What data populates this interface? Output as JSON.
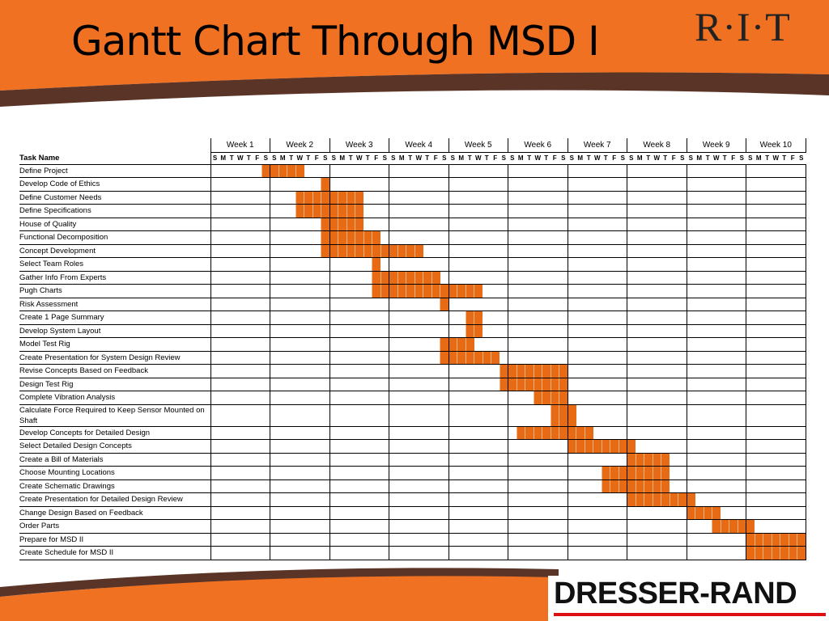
{
  "slide": {
    "title": "Gantt Chart Through MSD I",
    "logo_top": "R·I·T",
    "logo_bottom": "DRESSER-RAND"
  },
  "colors": {
    "accent": "#F07122",
    "bar": "#E76B14",
    "dark_band": "#5A3426"
  },
  "chart_data": {
    "type": "table",
    "title": "Gantt Chart Through MSD I",
    "row_header": "Task Name",
    "weeks": [
      "Week 1",
      "Week 2",
      "Week 3",
      "Week 4",
      "Week 5",
      "Week 6",
      "Week 7",
      "Week 8",
      "Week 9",
      "Week 10"
    ],
    "day_letters": [
      "S",
      "M",
      "T",
      "W",
      "T",
      "F",
      "S"
    ],
    "tasks": [
      {
        "name": "Define Project",
        "start_day": 6,
        "end_day": 10
      },
      {
        "name": "Develop Code of Ethics",
        "start_day": 13,
        "end_day": 13
      },
      {
        "name": "Define Customer Needs",
        "start_day": 10,
        "end_day": 17
      },
      {
        "name": "Define Specifications",
        "start_day": 10,
        "end_day": 17
      },
      {
        "name": "House of Quality",
        "start_day": 13,
        "end_day": 17
      },
      {
        "name": "Functional Decomposition",
        "start_day": 13,
        "end_day": 19
      },
      {
        "name": "Concept Development",
        "start_day": 13,
        "end_day": 24
      },
      {
        "name": "Select Team Roles",
        "start_day": 19,
        "end_day": 19
      },
      {
        "name": "Gather Info From Experts",
        "start_day": 19,
        "end_day": 26
      },
      {
        "name": "Pugh Charts",
        "start_day": 19,
        "end_day": 31
      },
      {
        "name": "Risk Assessment",
        "start_day": 27,
        "end_day": 27
      },
      {
        "name": "Create 1 Page Summary",
        "start_day": 30,
        "end_day": 31
      },
      {
        "name": "Develop System Layout",
        "start_day": 30,
        "end_day": 31
      },
      {
        "name": "Model Test Rig",
        "start_day": 27,
        "end_day": 30
      },
      {
        "name": "Create Presentation for System Design Review",
        "start_day": 27,
        "end_day": 33
      },
      {
        "name": "Revise Concepts Based on Feedback",
        "start_day": 34,
        "end_day": 41
      },
      {
        "name": "Design Test Rig",
        "start_day": 34,
        "end_day": 41
      },
      {
        "name": "Complete Vibration Analysis",
        "start_day": 38,
        "end_day": 41
      },
      {
        "name": "Calculate Force Required to Keep Sensor Mounted on Shaft",
        "start_day": 40,
        "end_day": 42
      },
      {
        "name": "Develop Concepts for Detailed Design",
        "start_day": 36,
        "end_day": 44
      },
      {
        "name": "Select Detailed Design Concepts",
        "start_day": 42,
        "end_day": 49
      },
      {
        "name": "Create a Bill of Materials",
        "start_day": 49,
        "end_day": 53
      },
      {
        "name": "Choose Mounting Locations",
        "start_day": 46,
        "end_day": 53
      },
      {
        "name": "Create Schematic Drawings",
        "start_day": 46,
        "end_day": 53
      },
      {
        "name": "Create Presentation for Detailed Design Review",
        "start_day": 49,
        "end_day": 56
      },
      {
        "name": "Change Design Based on Feedback",
        "start_day": 56,
        "end_day": 59
      },
      {
        "name": "Order Parts",
        "start_day": 59,
        "end_day": 63
      },
      {
        "name": "Prepare for MSD II",
        "start_day": 63,
        "end_day": 70
      },
      {
        "name": "Create Schedule for MSD II",
        "start_day": 63,
        "end_day": 70
      }
    ],
    "day_index_note": ""
  }
}
